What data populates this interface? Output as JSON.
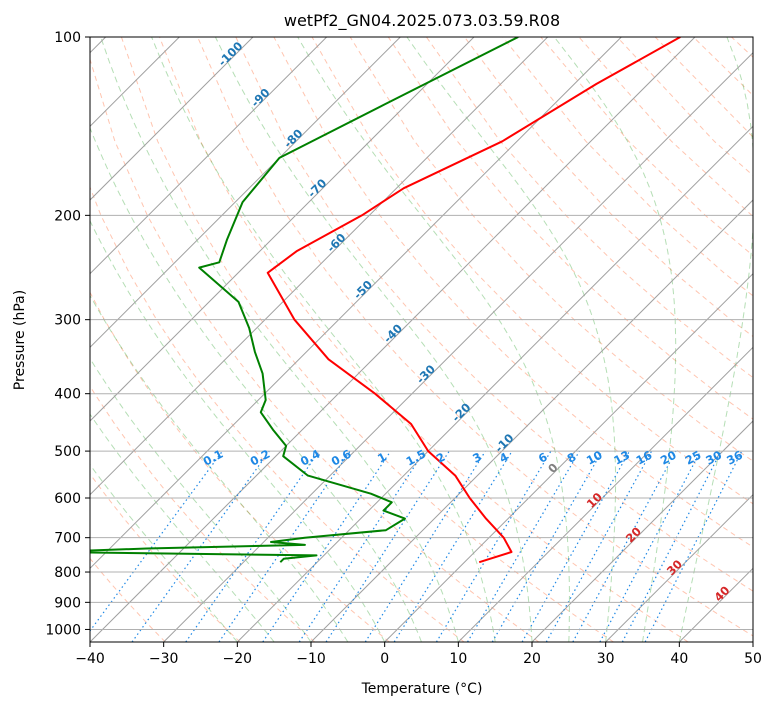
{
  "chart_data": {
    "type": "line",
    "subtype": "skew-T log-P diagram",
    "title": "wetPf2_GN04.2025.073.03.59.R08",
    "xlabel": "Temperature (°C)",
    "ylabel": "Pressure (hPa)",
    "xlim": [
      -40,
      50
    ],
    "ylim": [
      1050,
      100
    ],
    "y_scale": "log",
    "x_ticks": [
      "−40",
      "−30",
      "−20",
      "−10",
      "0",
      "10",
      "20",
      "30",
      "40",
      "50"
    ],
    "y_ticks": [
      "100",
      "200",
      "300",
      "400",
      "500",
      "600",
      "700",
      "800",
      "900",
      "1000"
    ],
    "grid": true,
    "colors": {
      "temperature": "#ff0000",
      "dewpoint": "#008000",
      "dry_adiabats": "#ff7f50",
      "moist_adiabats": "#2ca02c",
      "mixing_ratio": "#1e88e5",
      "isotherm_labels": "#1f77b4",
      "warm_isotherm_labels": "#d62728"
    },
    "isotherm_labels": [
      "-100",
      "-90",
      "-80",
      "-70",
      "-60",
      "-50",
      "-40",
      "-30",
      "-20",
      "-10",
      "0",
      "10",
      "20",
      "30",
      "40"
    ],
    "mixing_ratio_labels": [
      "0.1",
      "0.2",
      "0.4",
      "0.6",
      "1",
      "1.5",
      "2",
      "3",
      "4",
      "6",
      "8",
      "10",
      "13",
      "16",
      "20",
      "25",
      "30",
      "36"
    ],
    "series": [
      {
        "key": "temperature",
        "points": [
          [
            -42,
            100
          ],
          [
            -47,
            120
          ],
          [
            -52,
            150
          ],
          [
            -59,
            180
          ],
          [
            -61,
            200
          ],
          [
            -65,
            230
          ],
          [
            -66,
            250
          ],
          [
            -56,
            300
          ],
          [
            -46,
            350
          ],
          [
            -35,
            400
          ],
          [
            -26,
            450
          ],
          [
            -20,
            500
          ],
          [
            -13,
            550
          ],
          [
            -8,
            600
          ],
          [
            -3,
            650
          ],
          [
            2,
            700
          ],
          [
            5,
            740
          ],
          [
            2,
            770
          ]
        ]
      },
      {
        "key": "dewpoint",
        "points": [
          [
            -64,
            100
          ],
          [
            -73,
            130
          ],
          [
            -80,
            160
          ],
          [
            -79,
            190
          ],
          [
            -76,
            220
          ],
          [
            -74,
            240
          ],
          [
            -76,
            245
          ],
          [
            -66,
            280
          ],
          [
            -61,
            310
          ],
          [
            -57,
            340
          ],
          [
            -53,
            370
          ],
          [
            -49,
            410
          ],
          [
            -48,
            430
          ],
          [
            -44,
            460
          ],
          [
            -40,
            490
          ],
          [
            -39,
            510
          ],
          [
            -33,
            550
          ],
          [
            -22,
            590
          ],
          [
            -18,
            610
          ],
          [
            -18,
            630
          ],
          [
            -14,
            650
          ],
          [
            -15,
            680
          ],
          [
            -25,
            700
          ],
          [
            -29,
            712
          ],
          [
            -24,
            720
          ],
          [
            -45,
            730
          ],
          [
            -58,
            740
          ],
          [
            -21,
            750
          ],
          [
            -25,
            760
          ],
          [
            -25,
            770
          ]
        ]
      }
    ]
  }
}
